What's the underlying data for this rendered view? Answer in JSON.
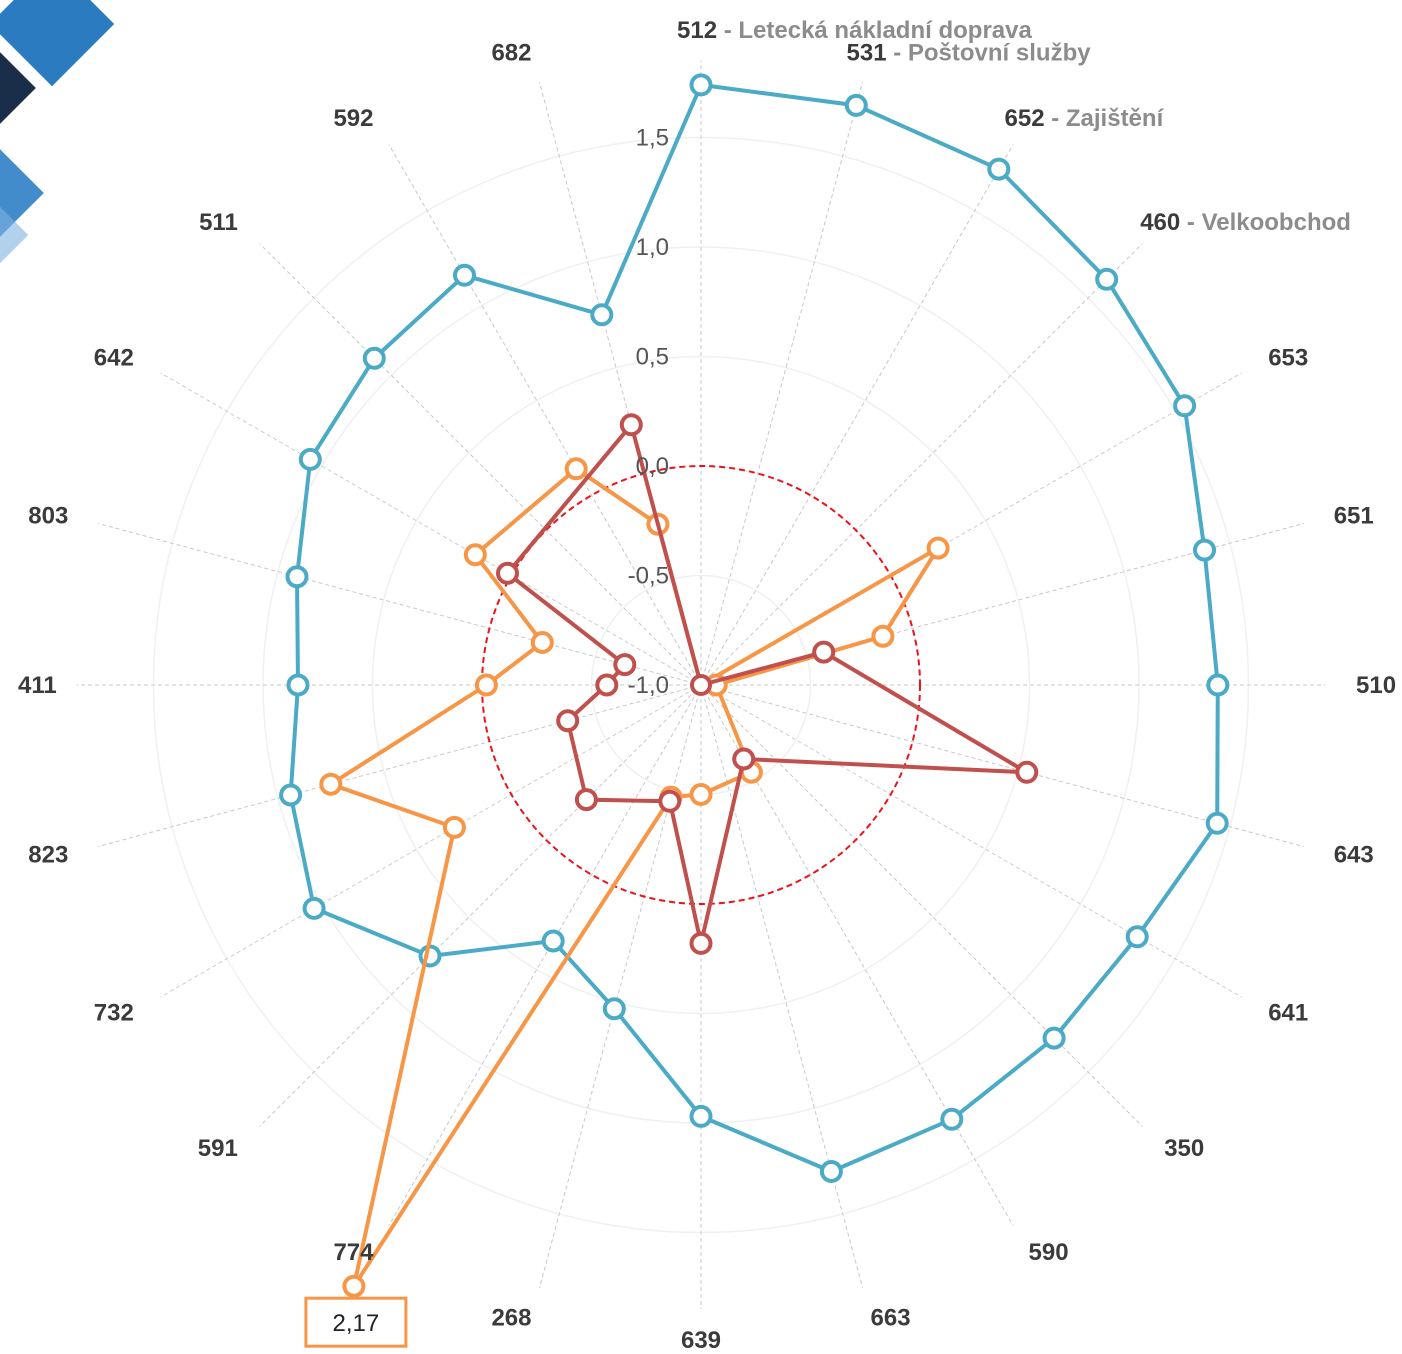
{
  "chart_data": {
    "type": "radar",
    "r_ticks": [
      "-1,0",
      "-0,5",
      "0,0",
      "0,5",
      "1,0",
      "1,5"
    ],
    "r_tick_values": [
      -1.0,
      -0.5,
      0.0,
      0.5,
      1.0,
      1.5
    ],
    "rlim": [
      -1.0,
      2.17
    ],
    "reference_circle": 0.0,
    "categories": [
      {
        "code": "512",
        "desc": "Letecká nákladní doprava"
      },
      {
        "code": "531",
        "desc": "Poštovní služby"
      },
      {
        "code": "652",
        "desc": "Zajištění"
      },
      {
        "code": "460",
        "desc": "Velkoobchod"
      },
      {
        "code": "653",
        "desc": ""
      },
      {
        "code": "651",
        "desc": ""
      },
      {
        "code": "510",
        "desc": ""
      },
      {
        "code": "643",
        "desc": ""
      },
      {
        "code": "641",
        "desc": ""
      },
      {
        "code": "350",
        "desc": ""
      },
      {
        "code": "590",
        "desc": ""
      },
      {
        "code": "663",
        "desc": ""
      },
      {
        "code": "639",
        "desc": ""
      },
      {
        "code": "268",
        "desc": ""
      },
      {
        "code": "774",
        "desc": ""
      },
      {
        "code": "591",
        "desc": ""
      },
      {
        "code": "732",
        "desc": ""
      },
      {
        "code": "823",
        "desc": ""
      },
      {
        "code": "411",
        "desc": ""
      },
      {
        "code": "803",
        "desc": ""
      },
      {
        "code": "642",
        "desc": ""
      },
      {
        "code": "511",
        "desc": ""
      },
      {
        "code": "592",
        "desc": ""
      },
      {
        "code": "682",
        "desc": ""
      }
    ],
    "series": [
      {
        "color": "#4baac6",
        "values": [
          1.74,
          1.74,
          1.72,
          1.62,
          1.55,
          1.38,
          1.36,
          1.44,
          1.3,
          1.28,
          1.29,
          1.3,
          0.97,
          0.53,
          0.35,
          0.75,
          1.04,
          0.94,
          0.84,
          0.91,
          1.06,
          1.11,
          1.16,
          0.75
        ]
      },
      {
        "color": "#f79646",
        "values": [
          null,
          null,
          null,
          null,
          0.25,
          -0.14,
          -0.93,
          null,
          null,
          null,
          -0.54,
          null,
          -0.5,
          -0.47,
          2.17,
          null,
          0.3,
          0.75,
          -0.02,
          -0.25,
          0.19,
          null,
          0.14,
          -0.24
        ]
      },
      {
        "color": "#c0504d",
        "values": [
          null,
          null,
          null,
          null,
          null,
          -0.42,
          null,
          0.54,
          null,
          null,
          -0.61,
          null,
          0.18,
          -0.45,
          null,
          -0.26,
          null,
          -0.37,
          -0.57,
          -0.64,
          0.02,
          null,
          null,
          0.23
        ]
      }
    ],
    "annotations": [
      {
        "text": "2,17",
        "category": "774",
        "series": 1,
        "color": "#f79646"
      }
    ]
  }
}
